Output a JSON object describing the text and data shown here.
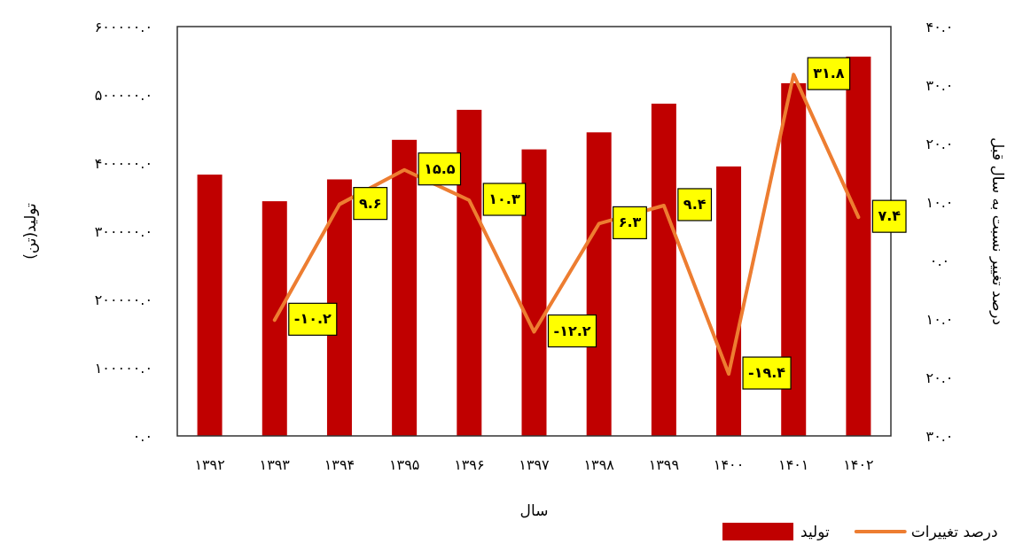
{
  "chart_data": {
    "type": "bar",
    "categories": [
      "۱۳۹۲",
      "۱۳۹۳",
      "۱۳۹۴",
      "۱۳۹۵",
      "۱۳۹۶",
      "۱۳۹۷",
      "۱۳۹۸",
      "۱۳۹۹",
      "۱۴۰۰",
      "۱۴۰۱",
      "۱۴۰۲"
    ],
    "xlabel": "سال",
    "ylabel": "تولید(تن)",
    "y2label": "درصد تغییر نسبت به سال قبل",
    "ylim": [
      0,
      600000
    ],
    "yticks": [
      {
        "value": 0,
        "label": "۰.۰"
      },
      {
        "value": 100000,
        "label": "۱۰۰۰۰۰.۰"
      },
      {
        "value": 200000,
        "label": "۲۰۰۰۰۰.۰"
      },
      {
        "value": 300000,
        "label": "۳۰۰۰۰۰.۰"
      },
      {
        "value": 400000,
        "label": "۴۰۰۰۰۰.۰"
      },
      {
        "value": 500000,
        "label": "۵۰۰۰۰۰.۰"
      },
      {
        "value": 600000,
        "label": "۶۰۰۰۰۰.۰"
      }
    ],
    "y2lim": [
      -30,
      40
    ],
    "y2ticks": [
      {
        "value": -30,
        "label": "۳۰.۰"
      },
      {
        "value": -20,
        "label": "۲۰.۰"
      },
      {
        "value": -10,
        "label": "۱۰.۰"
      },
      {
        "value": 0,
        "label": "۰.۰"
      },
      {
        "value": 10,
        "label": "۱۰.۰"
      },
      {
        "value": 20,
        "label": "۲۰.۰"
      },
      {
        "value": 30,
        "label": "۳۰.۰"
      },
      {
        "value": 40,
        "label": "۴۰.۰"
      }
    ],
    "legend": "bottom right",
    "series": [
      {
        "name": "تولید",
        "color": "#c00000",
        "values": [
          383000,
          344000,
          376000,
          434000,
          478000,
          420000,
          445000,
          487000,
          395000,
          517000,
          556000
        ]
      },
      {
        "name": "درصد تغییرات",
        "type": "line",
        "axis": "y2",
        "color": "#ed7d31",
        "values": [
          null,
          -10.2,
          9.6,
          15.5,
          10.3,
          -12.2,
          6.3,
          9.4,
          -19.4,
          31.8,
          7.4
        ],
        "value_labels": [
          null,
          "-۱۰.۲",
          "۹.۶",
          "۱۵.۵",
          "۱۰.۳",
          "-۱۲.۲",
          "۶.۳",
          "۹.۴",
          "-۱۹.۴",
          "۳۱.۸",
          "۷.۴"
        ]
      }
    ]
  }
}
